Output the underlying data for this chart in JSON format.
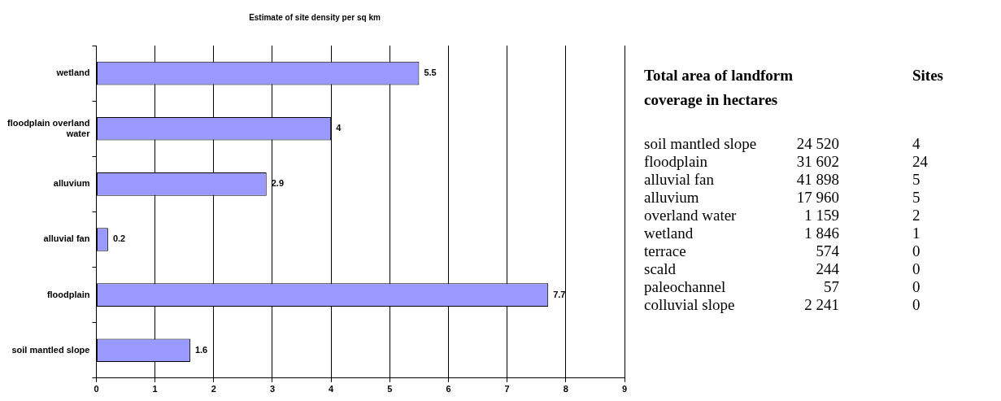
{
  "chart_data": [
    {
      "type": "bar",
      "orientation": "horizontal",
      "title": "Estimate of site density per sq km",
      "categories": [
        "wetland",
        "floodplain overland water",
        "alluvium",
        "alluvial fan",
        "floodplain",
        "soil mantled slope"
      ],
      "series": [
        {
          "color": "#9999ff",
          "values": [
            5.5,
            4,
            2.9,
            0.2,
            7.7,
            1.6
          ]
        }
      ],
      "xlim": [
        0,
        9
      ],
      "xticks": [
        0,
        1,
        2,
        3,
        4,
        5,
        6,
        7,
        8,
        9
      ],
      "grid": "x",
      "legend": false,
      "data_labels": true
    },
    {
      "type": "other",
      "data_labels": true,
      "categories": [
        "soil mantled slope",
        "floodplain",
        "alluvial fan",
        "alluvium",
        "overland water",
        "wetland",
        "terrace",
        "scald",
        "paleochannel",
        "colluvial slope"
      ],
      "series": [
        {
          "name": "Total area of landform coverage in hectares",
          "values": [
            24520,
            31602,
            41898,
            17960,
            1159,
            1846,
            574,
            244,
            57,
            2241
          ]
        },
        {
          "name": "Sites",
          "values": [
            4,
            24,
            5,
            5,
            2,
            1,
            0,
            0,
            0,
            0
          ]
        }
      ]
    }
  ]
}
